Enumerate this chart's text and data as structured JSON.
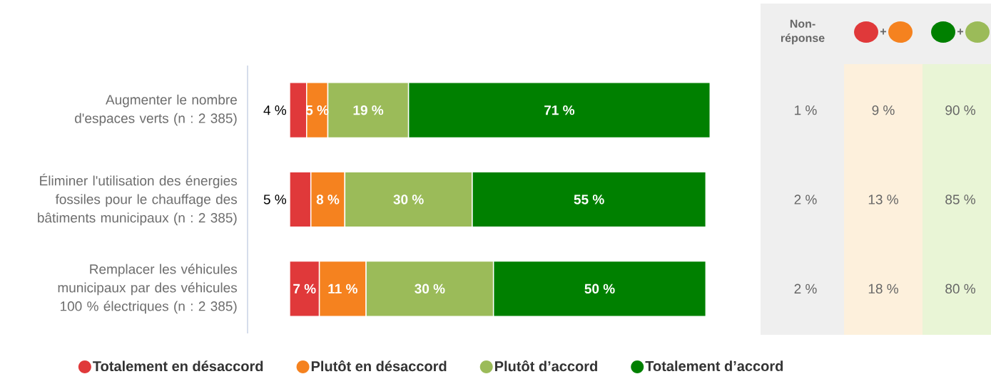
{
  "chart_data": [
    {
      "type": "bar",
      "orientation": "horizontal",
      "stacked": true,
      "categories": [
        "Augmenter le nombre d'espaces verts (n : 2 385)",
        "Éliminer l'utilisation des énergies fossiles pour le chauffage des bâtiments municipaux (n : 2 385)",
        "Remplacer les véhicules municipaux par des véhicules 100 % électriques (n : 2 385)"
      ],
      "tick_labels": "y",
      "legend": "bottom",
      "series": [
        {
          "name": "Totalement en désaccord",
          "color": "#e0393a",
          "values": [
            4,
            5,
            7
          ],
          "value_labels": [
            "4 %",
            "5 %",
            "7 %"
          ]
        },
        {
          "name": "Plutôt en désaccord",
          "color": "#f5821f",
          "values": [
            5,
            8,
            11
          ],
          "value_labels": [
            "5 %",
            "8 %",
            "11 %"
          ]
        },
        {
          "name": "Plutôt d’accord",
          "color": "#9bbb59",
          "values": [
            19,
            30,
            30
          ],
          "value_labels": [
            "19 %",
            "30 %",
            "30 %"
          ]
        },
        {
          "name": "Totalement d’accord",
          "color": "#008000",
          "values": [
            71,
            55,
            50
          ],
          "value_labels": [
            "71 %",
            "55 %",
            "50 %"
          ]
        }
      ]
    },
    {
      "type": "other",
      "categories": [
        "Non-réponse",
        "+",
        "+"
      ],
      "colors": [
        "#efefef",
        "#fdf0dc",
        "#e9f5d6"
      ],
      "cell_labels": [
        [
          "1 %",
          "9 %",
          "90 %"
        ],
        [
          "2 %",
          "13 %",
          "85 %"
        ],
        [
          "2 %",
          "18 %",
          "80 %"
        ]
      ]
    }
  ]
}
